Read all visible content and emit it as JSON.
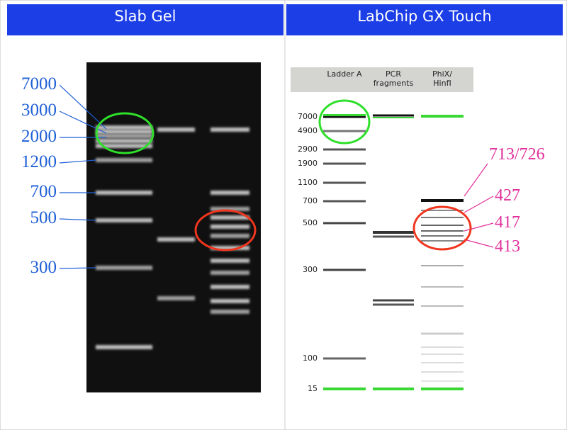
{
  "panels": [
    {
      "title": "Slab Gel",
      "ladder_labels": [
        "7000",
        "3000",
        "2000",
        "1200",
        "700",
        "500",
        "300"
      ]
    },
    {
      "title": "LabChip GX Touch",
      "lane_headers": [
        "Ladder A",
        "PCR fragments",
        "PhiX/ HinfI"
      ],
      "ladder_labels": [
        "7000",
        "4900",
        "2900",
        "1900",
        "1100",
        "700",
        "500",
        "300",
        "100",
        "15"
      ],
      "annotations": [
        "713/726",
        "427",
        "417",
        "413"
      ]
    }
  ]
}
